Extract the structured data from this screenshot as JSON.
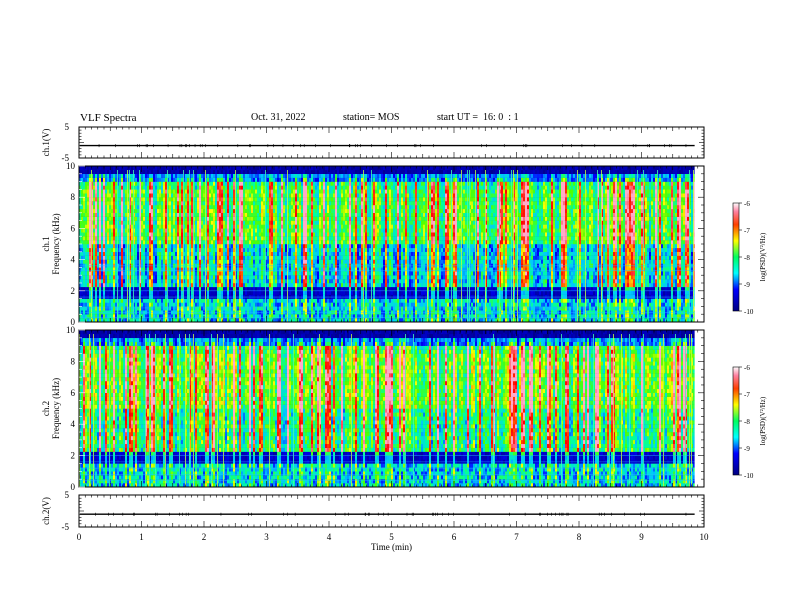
{
  "header": {
    "title": "VLF Spectra",
    "date": "Oct. 31, 2022",
    "station": "station= MOS",
    "start_ut": "start UT =  16: 0  : 1"
  },
  "chart_data": [
    {
      "type": "line",
      "title": "",
      "ylabel": "ch.1(V)",
      "ylim": [
        -5,
        5
      ],
      "yticks": [
        "5",
        "-5"
      ],
      "xlim": [
        0,
        10
      ],
      "series": [
        {
          "values_approx_constant": -1
        }
      ]
    },
    {
      "type": "heatmap",
      "ylabel": "ch.1\nFrequency (kHz)",
      "ylabel_lines": [
        "ch.1",
        "Frequency (kHz)"
      ],
      "xlim": [
        0,
        10
      ],
      "ylim": [
        0,
        10
      ],
      "yticks": [
        "0",
        "2",
        "4",
        "6",
        "8",
        "10"
      ],
      "colorbar": {
        "label": "log(PSD)(V²/Hz)",
        "min": -10,
        "max": -6,
        "ticks": [
          "-6",
          "-7",
          "-8",
          "-9",
          "-10"
        ]
      },
      "data_end_min": 9.85
    },
    {
      "type": "heatmap",
      "ylabel": "ch.2\nFrequency (kHz)",
      "ylabel_lines": [
        "ch.2",
        "Frequency (kHz)"
      ],
      "xlim": [
        0,
        10
      ],
      "ylim": [
        0,
        10
      ],
      "yticks": [
        "0",
        "2",
        "4",
        "6",
        "8",
        "10"
      ],
      "colorbar": {
        "label": "log(PSD)(V²/Hz)",
        "min": -10,
        "max": -6,
        "ticks": [
          "-6",
          "-7",
          "-8",
          "-9",
          "-10"
        ]
      },
      "data_end_min": 9.85
    },
    {
      "type": "line",
      "ylabel": "ch.2(V)",
      "ylim": [
        -5,
        5
      ],
      "yticks": [
        "5",
        "-5"
      ],
      "xlim": [
        0,
        10
      ],
      "series": [
        {
          "values_approx_constant": -1
        }
      ]
    }
  ],
  "xaxis": {
    "label": "Time (min)",
    "ticks": [
      "0",
      "1",
      "2",
      "3",
      "4",
      "5",
      "6",
      "7",
      "8",
      "9",
      "10"
    ]
  },
  "colors": {
    "colormap": [
      "#000080",
      "#0000ff",
      "#0080ff",
      "#00ffff",
      "#00ff80",
      "#80ff00",
      "#ffff00",
      "#ff8000",
      "#ff0000",
      "#ffffff"
    ]
  }
}
